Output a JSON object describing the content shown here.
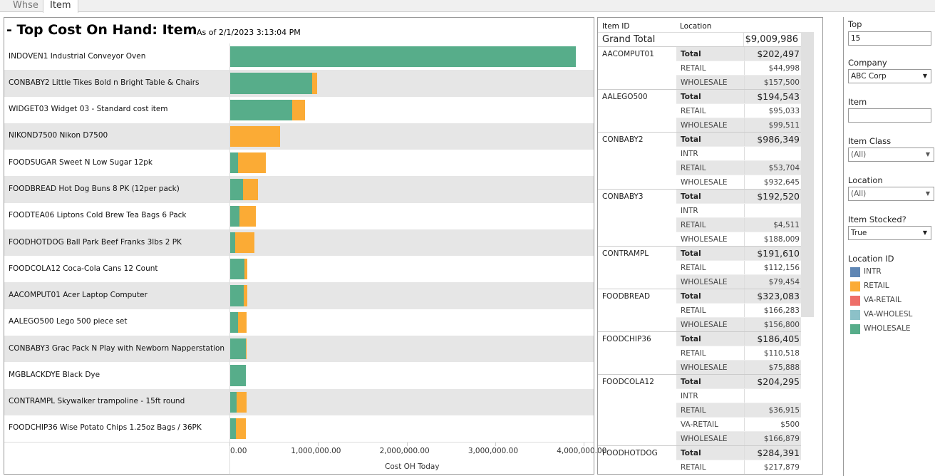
{
  "tabs": [
    {
      "label": "Whse"
    },
    {
      "label": "Item",
      "active": true
    }
  ],
  "chart_title": "- Top Cost On Hand: Item",
  "as_of": "As of 2/1/2023 3:13:04 PM",
  "colors": {
    "WHOLESALE": "#57ad8a",
    "RETAIL": "#fbab35",
    "INTR": "#5f86b4",
    "VA-RETAIL": "#ee6e68",
    "VA-WHOLESL": "#8cc1c8"
  },
  "chart_data": {
    "type": "bar",
    "orientation": "horizontal",
    "stacked": true,
    "xlabel": "Cost OH Today",
    "xlim": [
      0,
      4100000
    ],
    "xticks": [
      "0.00",
      "1,000,000.00",
      "2,000,000.00",
      "3,000,000.00",
      "4,000,000.00"
    ],
    "xtick_values": [
      0,
      1000000,
      2000000,
      3000000,
      4000000
    ],
    "categories": [
      "INDOVEN1  Industrial Conveyor Oven",
      "CONBABY2  Little Tikes Bold n Bright Table & Chairs",
      "WIDGET03  Widget 03 - Standard cost item",
      "NIKOND7500  Nikon D7500",
      "FOODSUGAR  Sweet N Low Sugar 12pk",
      "FOODBREAD  Hot Dog Buns 8 PK (12per pack)",
      "FOODTEA06  Liptons Cold Brew Tea Bags 6 Pack",
      "FOODHOTDOG  Ball Park Beef Franks 3lbs 2 PK",
      "FOODCOLA12  Coca-Cola Cans 12 Count",
      "AACOMPUT01  Acer Laptop Computer",
      "AALEGO500  Lego 500 piece set",
      "CONBABY3  Grac Pack N Play with Newborn Napperstation",
      "MGBLACKDYE  Black Dye",
      "CONTRAMPL  Skywalker trampoline - 15ft round",
      "FOODCHIP36  Wise Potato Chips 1.25oz Bags / 36PK"
    ],
    "series": [
      {
        "name": "WHOLESALE",
        "values": [
          3910000,
          932645,
          710000,
          0,
          100000,
          156800,
          110000,
          66512,
          166879,
          157500,
          99511,
          188009,
          185000,
          79454,
          75888
        ]
      },
      {
        "name": "RETAIL",
        "values": [
          0,
          53704,
          140000,
          570000,
          310000,
          166283,
          190000,
          217879,
          37415,
          44998,
          95033,
          4511,
          0,
          112156,
          110518
        ]
      }
    ],
    "grid": false,
    "legend": "right"
  },
  "table": {
    "headers": [
      "Item ID",
      "Location"
    ],
    "grand_total_label": "Grand Total",
    "grand_total": "$9,009,986",
    "groups": [
      {
        "id": "AACOMPUT01",
        "rows": [
          [
            "Total",
            "$202,497"
          ],
          [
            "RETAIL",
            "$44,998"
          ],
          [
            "WHOLESALE",
            "$157,500"
          ]
        ]
      },
      {
        "id": "AALEGO500",
        "rows": [
          [
            "Total",
            "$194,543"
          ],
          [
            "RETAIL",
            "$95,033"
          ],
          [
            "WHOLESALE",
            "$99,511"
          ]
        ]
      },
      {
        "id": "CONBABY2",
        "rows": [
          [
            "Total",
            "$986,349"
          ],
          [
            "INTR",
            ""
          ],
          [
            "RETAIL",
            "$53,704"
          ],
          [
            "WHOLESALE",
            "$932,645"
          ]
        ]
      },
      {
        "id": "CONBABY3",
        "rows": [
          [
            "Total",
            "$192,520"
          ],
          [
            "INTR",
            ""
          ],
          [
            "RETAIL",
            "$4,511"
          ],
          [
            "WHOLESALE",
            "$188,009"
          ]
        ]
      },
      {
        "id": "CONTRAMPL",
        "rows": [
          [
            "Total",
            "$191,610"
          ],
          [
            "RETAIL",
            "$112,156"
          ],
          [
            "WHOLESALE",
            "$79,454"
          ]
        ]
      },
      {
        "id": "FOODBREAD",
        "rows": [
          [
            "Total",
            "$323,083"
          ],
          [
            "RETAIL",
            "$166,283"
          ],
          [
            "WHOLESALE",
            "$156,800"
          ]
        ]
      },
      {
        "id": "FOODCHIP36",
        "rows": [
          [
            "Total",
            "$186,405"
          ],
          [
            "RETAIL",
            "$110,518"
          ],
          [
            "WHOLESALE",
            "$75,888"
          ]
        ]
      },
      {
        "id": "FOODCOLA12",
        "rows": [
          [
            "Total",
            "$204,295"
          ],
          [
            "INTR",
            ""
          ],
          [
            "RETAIL",
            "$36,915"
          ],
          [
            "VA-RETAIL",
            "$500"
          ],
          [
            "WHOLESALE",
            "$166,879"
          ]
        ]
      },
      {
        "id": "FOODHOTDOG",
        "rows": [
          [
            "Total",
            "$284,391"
          ],
          [
            "RETAIL",
            "$217,879"
          ]
        ]
      }
    ]
  },
  "filters": {
    "top": {
      "label": "Top",
      "value": "15"
    },
    "company": {
      "label": "Company",
      "value": "ABC Corp"
    },
    "item": {
      "label": "Item",
      "value": ""
    },
    "item_class": {
      "label": "Item Class",
      "value": "(All)"
    },
    "location": {
      "label": "Location",
      "value": "(All)"
    },
    "item_stocked": {
      "label": "Item Stocked?",
      "value": "True"
    }
  },
  "legend": {
    "title": "Location ID",
    "items": [
      "INTR",
      "RETAIL",
      "VA-RETAIL",
      "VA-WHOLESL",
      "WHOLESALE"
    ]
  }
}
